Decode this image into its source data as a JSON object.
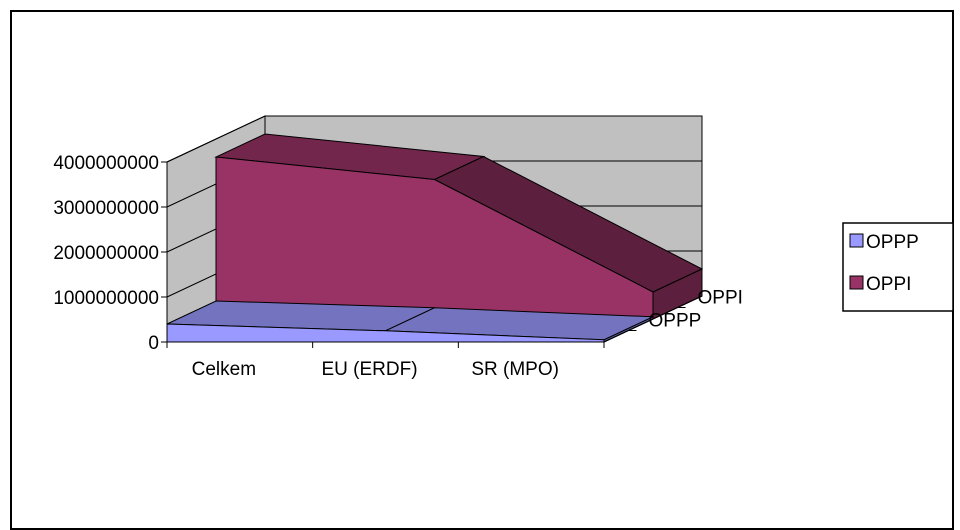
{
  "chart_data": {
    "type": "area",
    "categories": [
      "Celkem",
      "EU (ERDF)",
      "SR (MPO)"
    ],
    "series": [
      {
        "name": "OPPP",
        "values": [
          400000000,
          250000000,
          50000000
        ],
        "color": "#9999ff"
      },
      {
        "name": "OPPI",
        "values": [
          3600000000,
          3100000000,
          600000000
        ],
        "color": "#993366"
      }
    ],
    "y_ticks": [
      "0",
      "1000000000",
      "2000000000",
      "3000000000",
      "4000000000"
    ],
    "ylim": [
      0,
      4000000000
    ],
    "depth_labels": [
      "OPPI",
      "OPPP"
    ],
    "legend": {
      "position": "right",
      "items": [
        "OPPP",
        "OPPI"
      ]
    },
    "walls_color": "#c0c0c0",
    "floor_color": "#808080",
    "grid": true
  }
}
